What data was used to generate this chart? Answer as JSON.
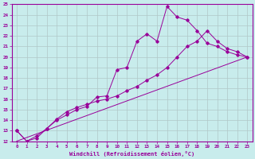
{
  "xlabel": "Windchill (Refroidissement éolien,°C)",
  "ylabel": "",
  "bg_color": "#c8ecec",
  "line_color": "#990099",
  "grid_color": "#b0c8c8",
  "xlim": [
    -0.5,
    23.5
  ],
  "ylim": [
    12,
    25
  ],
  "xticks": [
    0,
    1,
    2,
    3,
    4,
    5,
    6,
    7,
    8,
    9,
    10,
    11,
    12,
    13,
    14,
    15,
    16,
    17,
    18,
    19,
    20,
    21,
    22,
    23
  ],
  "yticks": [
    12,
    13,
    14,
    15,
    16,
    17,
    18,
    19,
    20,
    21,
    22,
    23,
    24,
    25
  ],
  "line1_x": [
    0,
    1,
    2,
    3,
    4,
    5,
    6,
    7,
    8,
    9,
    10,
    11,
    12,
    13,
    14,
    15,
    16,
    17,
    18,
    19,
    20,
    21,
    22,
    23
  ],
  "line1_y": [
    13.0,
    12.0,
    12.3,
    13.2,
    14.0,
    14.5,
    15.0,
    15.3,
    16.2,
    16.3,
    18.8,
    19.0,
    21.5,
    22.2,
    21.5,
    24.8,
    23.8,
    23.5,
    22.5,
    21.3,
    21.0,
    20.5,
    20.2,
    20.0
  ],
  "line2_x": [
    0,
    1,
    2,
    3,
    4,
    5,
    6,
    7,
    8,
    9,
    10,
    11,
    12,
    13,
    14,
    15,
    16,
    17,
    18,
    19,
    20,
    21,
    22,
    23
  ],
  "line2_y": [
    13.0,
    12.0,
    12.5,
    13.2,
    14.1,
    14.8,
    15.2,
    15.5,
    15.8,
    16.0,
    16.3,
    16.8,
    17.2,
    17.8,
    18.3,
    19.0,
    20.0,
    21.0,
    21.5,
    22.5,
    21.5,
    20.8,
    20.5,
    20.0
  ],
  "line3_x": [
    0,
    23
  ],
  "line3_y": [
    12.0,
    20.0
  ]
}
